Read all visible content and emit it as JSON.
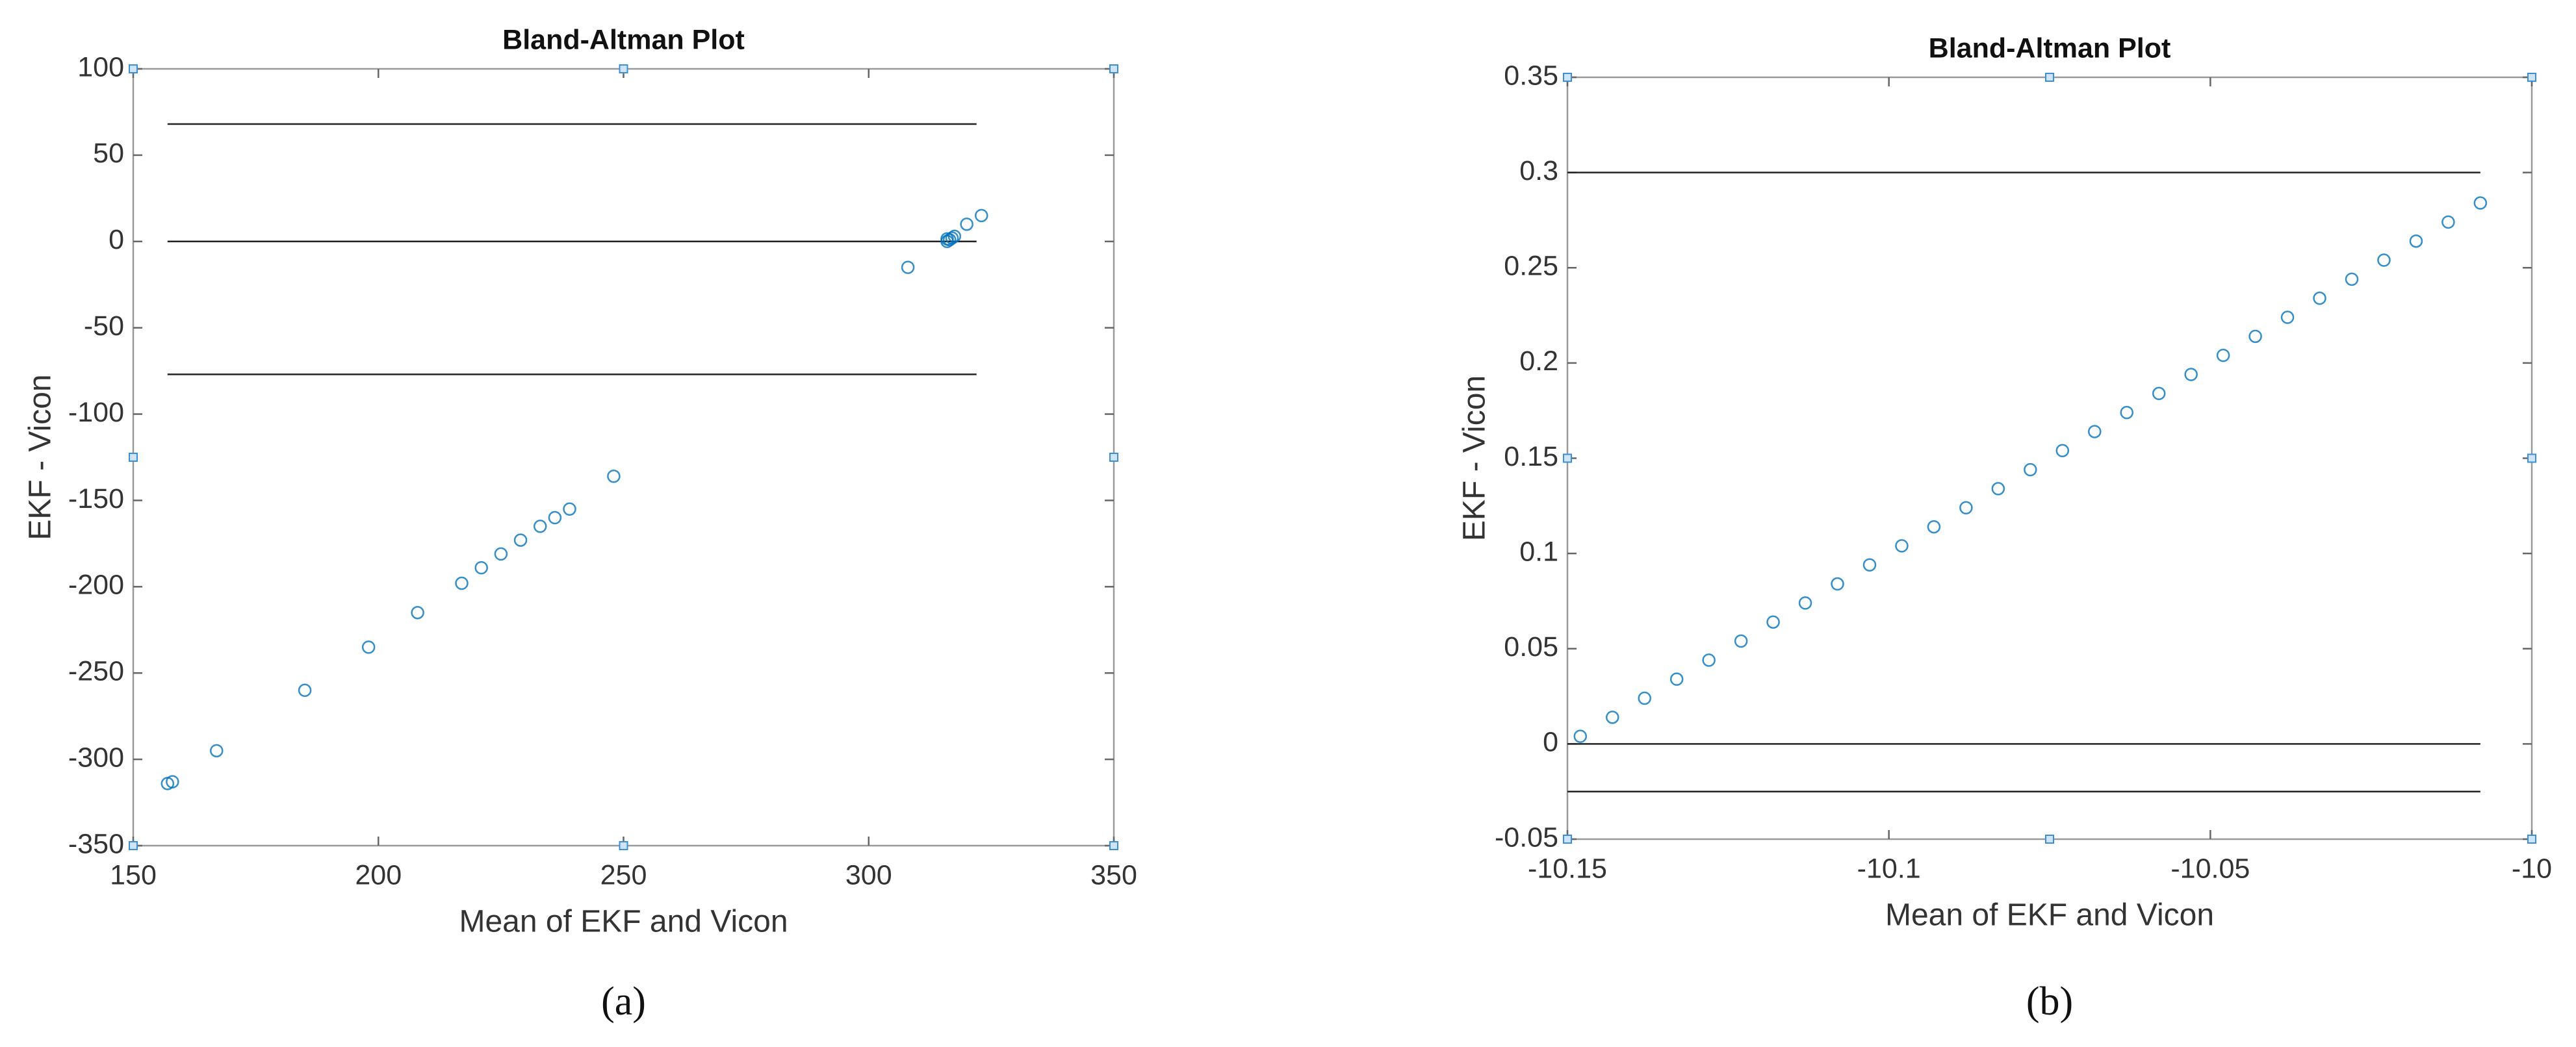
{
  "chart_data": [
    {
      "type": "scatter",
      "title": "Bland-Altman Plot",
      "xlabel": "Mean of EKF and Vicon",
      "ylabel": "EKF - Vicon",
      "panel_label": "(a)",
      "color": "#0072bd",
      "x": [
        157,
        158,
        167,
        185,
        198,
        208,
        217,
        221,
        225,
        229,
        233,
        236,
        239,
        248,
        308,
        316,
        316.5,
        317,
        317.5,
        316,
        320,
        323
      ],
      "values": [
        -314,
        -313,
        -295,
        -260,
        -235,
        -215,
        -198,
        -189,
        -181,
        -173,
        -165,
        -160,
        -155,
        -136,
        -15,
        0,
        1,
        2,
        3,
        1.5,
        10,
        15
      ],
      "hlines": [
        {
          "y": 68,
          "x": [
            157,
            322
          ]
        },
        {
          "y": 0,
          "x": [
            157,
            322
          ]
        },
        {
          "y": -77,
          "x": [
            157,
            322
          ]
        }
      ],
      "xlim": [
        150,
        350
      ],
      "xticks": [
        150,
        200,
        250,
        300,
        350
      ],
      "ylim": [
        -350,
        100
      ],
      "yticks": [
        -350,
        -300,
        -250,
        -200,
        -150,
        -100,
        -50,
        0,
        50,
        100
      ]
    },
    {
      "type": "scatter",
      "title": "Bland-Altman Plot",
      "xlabel": "Mean of EKF and Vicon",
      "ylabel": "EKF - Vicon",
      "panel_label": "(b)",
      "color": "#0072bd",
      "x": [
        -10.148,
        -10.143,
        -10.138,
        -10.133,
        -10.128,
        -10.123,
        -10.118,
        -10.113,
        -10.108,
        -10.103,
        -10.098,
        -10.093,
        -10.088,
        -10.083,
        -10.078,
        -10.073,
        -10.068,
        -10.063,
        -10.058,
        -10.053,
        -10.048,
        -10.043,
        -10.038,
        -10.033,
        -10.028,
        -10.023,
        -10.018,
        -10.013,
        -10.008
      ],
      "values": [
        0.004,
        0.014,
        0.024,
        0.034,
        0.044,
        0.054,
        0.064,
        0.074,
        0.084,
        0.094,
        0.104,
        0.114,
        0.124,
        0.134,
        0.144,
        0.154,
        0.164,
        0.174,
        0.184,
        0.194,
        0.204,
        0.214,
        0.224,
        0.234,
        0.244,
        0.254,
        0.264,
        0.274,
        0.284
      ],
      "hlines": [
        {
          "y": 0.3,
          "x": [
            -10.15,
            -10.008
          ]
        },
        {
          "y": 0,
          "x": [
            -10.15,
            -10.008
          ]
        },
        {
          "y": -0.025,
          "x": [
            -10.15,
            -10.008
          ]
        }
      ],
      "xlim": [
        -10.15,
        -10
      ],
      "xticks": [
        -10.15,
        -10.1,
        -10.05,
        -10
      ],
      "ylim": [
        -0.05,
        0.35
      ],
      "yticks": [
        -0.05,
        0,
        0.05,
        0.1,
        0.15,
        0.2,
        0.25,
        0.3,
        0.35
      ]
    }
  ]
}
